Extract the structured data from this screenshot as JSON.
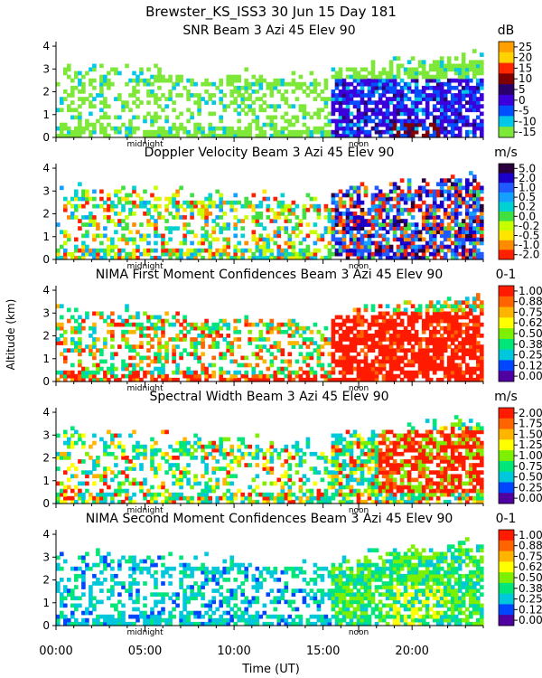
{
  "chart_data": {
    "type": "heatmap",
    "title": "Brewster_KS_ISS3   30 Jun 15 Day 181",
    "ylabel": "Altitude (km)",
    "xlabel": "Time (UT)",
    "x_ticks": [
      "00:00",
      "05:00",
      "10:00",
      "15:00",
      "20:00"
    ],
    "x_range_hours": [
      0,
      24
    ],
    "y_range_km": [
      0,
      4.2
    ],
    "y_ticks": [
      "0",
      "1",
      "2",
      "3",
      "4"
    ],
    "midnight_label": "midnight",
    "noon_label": "noon",
    "midnight_hour": 5,
    "noon_hour": 17,
    "panels": [
      {
        "title": "SNR Beam 3 Azi   45 Elev 90",
        "unit": "dB",
        "colorbar": [
          "25",
          "20",
          "15",
          "10",
          "5",
          "0",
          "-5",
          "-10",
          "-15"
        ],
        "colors": [
          "#ffa000",
          "#ffd200",
          "#ff2800",
          "#800000",
          "#2a006a",
          "#3c00dc",
          "#0050ff",
          "#00c8e6",
          "#7ee838"
        ]
      },
      {
        "title": "Doppler Velocity Beam 3 Azi   45 Elev 90",
        "unit": "m/s",
        "colorbar": [
          "5.0",
          "2.0",
          "1.0",
          "0.5",
          "0.2",
          "0.0",
          "-0.2",
          "-0.5",
          "-1.0",
          "-2.0"
        ],
        "colors": [
          "#2a003c",
          "#1a00c8",
          "#1e5aff",
          "#14a0ff",
          "#00d2d2",
          "#40e040",
          "#c8ff00",
          "#ffe600",
          "#ff8c00",
          "#ff2000"
        ]
      },
      {
        "title": "NIMA First Moment Confidences Beam 3 Azi   45 Elev 90",
        "unit": "0-1",
        "colorbar": [
          "1.00",
          "0.88",
          "0.75",
          "0.62",
          "0.50",
          "0.38",
          "0.25",
          "0.12",
          "0.00"
        ],
        "colors": [
          "#ff1a00",
          "#ff6400",
          "#ffb400",
          "#ffff00",
          "#7cf000",
          "#00e678",
          "#00c8dc",
          "#0046ff",
          "#5000a0"
        ]
      },
      {
        "title": "Spectral Width Beam 3 Azi   45 Elev 90",
        "unit": "m/s",
        "colorbar": [
          "2.00",
          "1.75",
          "1.50",
          "1.25",
          "1.00",
          "0.75",
          "0.50",
          "0.25",
          "0.00"
        ],
        "colors": [
          "#ff1a00",
          "#ff6400",
          "#ffb400",
          "#ffff00",
          "#7cf000",
          "#00e678",
          "#00c8dc",
          "#0046ff",
          "#5000a0"
        ]
      },
      {
        "title": "NIMA Second Moment Confidences Beam 3 Azi   45 Elev 90",
        "unit": "0-1",
        "colorbar": [
          "1.00",
          "0.88",
          "0.75",
          "0.62",
          "0.50",
          "0.38",
          "0.25",
          "0.12",
          "0.00"
        ],
        "colors": [
          "#ff1a00",
          "#ff6400",
          "#ffb400",
          "#ffff00",
          "#7cf000",
          "#00e678",
          "#00c8dc",
          "#0046ff",
          "#5000a0"
        ]
      }
    ]
  }
}
